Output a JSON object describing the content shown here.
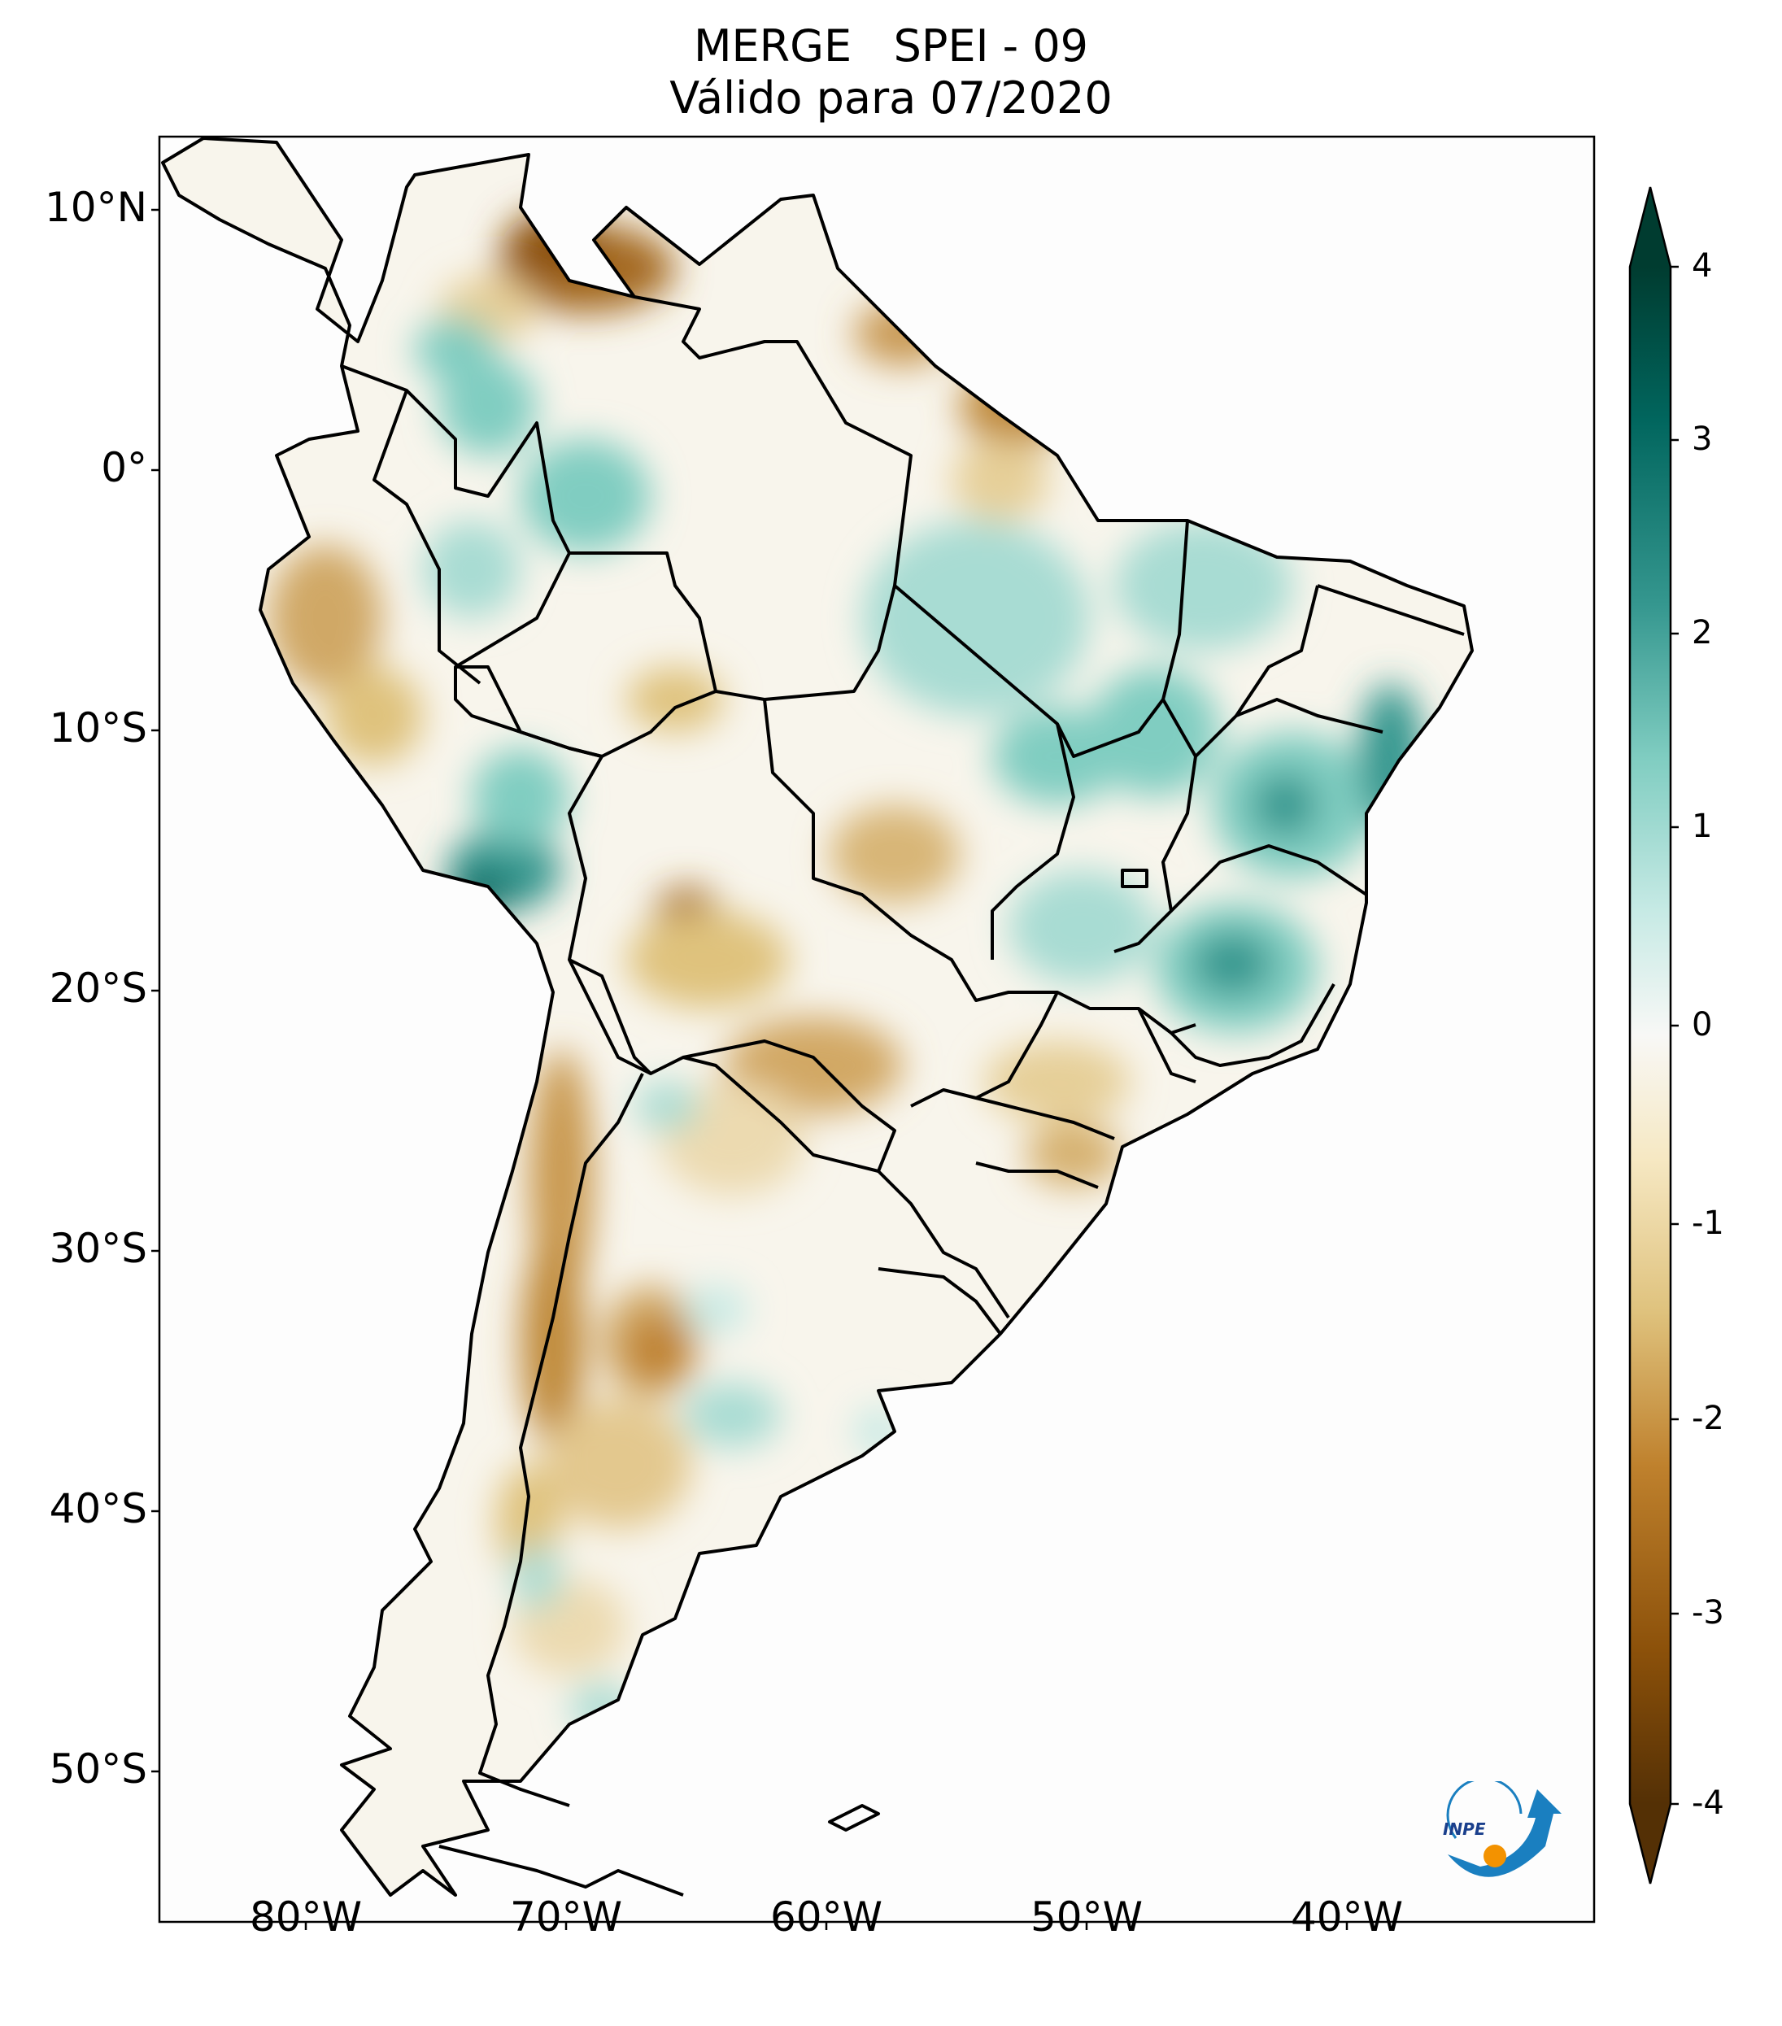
{
  "title": {
    "line1": "MERGE   SPEI - 09",
    "line2": "Válido para 07/2020"
  },
  "axes": {
    "lat_ticks": [
      "10°N",
      "0°",
      "10°S",
      "20°S",
      "30°S",
      "40°S",
      "50°S"
    ],
    "lon_ticks": [
      "80°W",
      "70°W",
      "60°W",
      "50°W",
      "40°W"
    ]
  },
  "colorbar": {
    "labels": [
      "4",
      "3",
      "2",
      "1",
      "0",
      "-1",
      "-2",
      "-3",
      "-4"
    ],
    "colors": {
      "max": "#003c30",
      "high": "#01665e",
      "mid_high": "#35978f",
      "low_high": "#80cdc1",
      "light_high": "#c7eae5",
      "zero": "#f5f5f5",
      "light_low": "#f6e8c3",
      "low_low": "#dfc27d",
      "mid_low": "#bf812d",
      "low": "#8c510a",
      "min": "#543005"
    }
  },
  "logo": {
    "text": "INPE"
  }
}
